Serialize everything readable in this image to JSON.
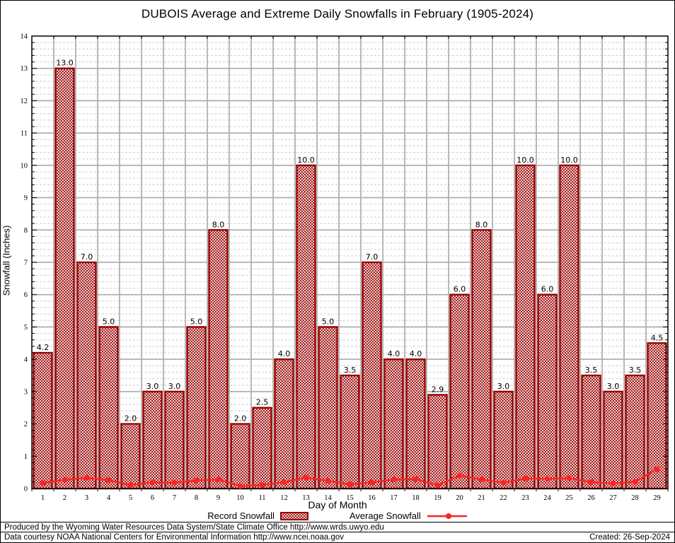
{
  "chart_data": {
    "type": "bar",
    "title": "DUBOIS Average and Extreme Daily Snowfalls in February (1905-2024)",
    "xlabel": "Day of Month",
    "ylabel": "Snowfall (Inches)",
    "ylim": [
      0,
      14
    ],
    "y_major_step": 1,
    "y_minor_step": 0.2,
    "grid": "on",
    "legend_position": "bottom",
    "categories": [
      "1",
      "2",
      "3",
      "4",
      "5",
      "6",
      "7",
      "8",
      "9",
      "10",
      "11",
      "12",
      "13",
      "14",
      "15",
      "16",
      "17",
      "18",
      "19",
      "20",
      "21",
      "22",
      "23",
      "24",
      "25",
      "26",
      "27",
      "28",
      "29"
    ],
    "series": [
      {
        "name": "Record Snowfall",
        "type": "bar",
        "values": [
          4.2,
          13.0,
          7.0,
          5.0,
          2.0,
          3.0,
          3.0,
          5.0,
          8.0,
          2.0,
          2.5,
          4.0,
          10.0,
          5.0,
          3.5,
          7.0,
          4.0,
          4.0,
          2.9,
          6.0,
          8.0,
          3.0,
          10.0,
          6.0,
          10.0,
          3.5,
          3.0,
          3.5,
          4.5
        ],
        "labels": [
          "4.2",
          "13.0",
          "7.0",
          "5.0",
          "2.0",
          "3.0",
          "3.0",
          "5.0",
          "8.0",
          "2.0",
          "2.5",
          "4.0",
          "10.0",
          "5.0",
          "3.5",
          "7.0",
          "4.0",
          "4.0",
          "2.9",
          "6.0",
          "8.0",
          "3.0",
          "10.0",
          "6.0",
          "10.0",
          "3.5",
          "3.0",
          "3.5",
          "4.5"
        ]
      },
      {
        "name": "Average Snowfall",
        "type": "line",
        "values": [
          0.17,
          0.27,
          0.33,
          0.26,
          0.11,
          0.19,
          0.18,
          0.25,
          0.28,
          0.08,
          0.11,
          0.2,
          0.34,
          0.24,
          0.13,
          0.19,
          0.28,
          0.29,
          0.1,
          0.4,
          0.28,
          0.18,
          0.31,
          0.3,
          0.32,
          0.2,
          0.16,
          0.21,
          0.6
        ]
      }
    ]
  },
  "colors": {
    "bar_border": "#990000",
    "bar_hatch": "#990000",
    "average_line": "#ff2222",
    "grid_major": "#b0b0b0",
    "grid_minor": "#cccccc",
    "axis": "#000000"
  },
  "footer": {
    "produced_by": "Produced by the Wyoming Water Resources Data System/State Climate Office http://www.wrds.uwyo.edu",
    "data_courtesy": "Data courtesy NOAA National Centers for Environmental Information http://www.ncei.noaa.gov",
    "created": "Created: 26-Sep-2024"
  }
}
